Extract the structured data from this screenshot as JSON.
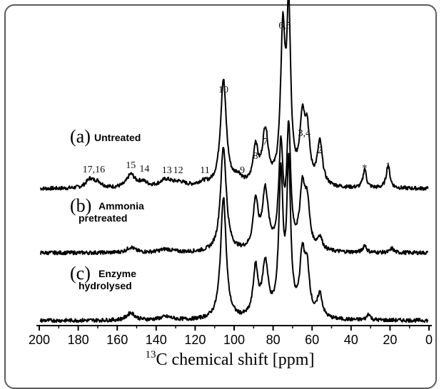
{
  "chart_data": {
    "type": "line",
    "title": "",
    "xlabel_sup": "13",
    "xlabel": "C chemical shift [ppm]",
    "xlim": [
      200,
      0
    ],
    "x_reversed": true,
    "x_ticks": [
      200,
      180,
      160,
      140,
      120,
      100,
      80,
      60,
      40,
      20,
      0
    ],
    "grid": false,
    "series": [
      {
        "letter": "(a)",
        "desc_lines": [
          "Untreated"
        ],
        "baseline": 0,
        "peaks": [
          {
            "x": 174,
            "h": 0.08,
            "w": 2.5
          },
          {
            "x": 170,
            "h": 0.05,
            "w": 2.5
          },
          {
            "x": 153,
            "h": 0.12,
            "w": 2.5
          },
          {
            "x": 147,
            "h": 0.05,
            "w": 3
          },
          {
            "x": 135,
            "h": 0.07,
            "w": 4
          },
          {
            "x": 128,
            "h": 0.04,
            "w": 4
          },
          {
            "x": 116,
            "h": 0.04,
            "w": 4
          },
          {
            "x": 105.5,
            "h": 1.0,
            "w": 1.8
          },
          {
            "x": 98,
            "h": 0.08,
            "w": 2.5
          },
          {
            "x": 89,
            "h": 0.35,
            "w": 1.5
          },
          {
            "x": 84,
            "h": 0.5,
            "w": 1.8
          },
          {
            "x": 75,
            "h": 1.38,
            "w": 1.4
          },
          {
            "x": 72,
            "h": 1.55,
            "w": 1.2
          },
          {
            "x": 65,
            "h": 0.58,
            "w": 1.6
          },
          {
            "x": 62.5,
            "h": 0.45,
            "w": 1.5
          },
          {
            "x": 56,
            "h": 0.4,
            "w": 1.6
          },
          {
            "x": 33,
            "h": 0.18,
            "w": 1.0
          },
          {
            "x": 21,
            "h": 0.22,
            "w": 1.1
          }
        ]
      },
      {
        "letter": "(b)",
        "desc_lines": [
          "Ammonia",
          "pretreated"
        ],
        "baseline": 0,
        "peaks": [
          {
            "x": 153,
            "h": 0.05,
            "w": 2.5
          },
          {
            "x": 135,
            "h": 0.03,
            "w": 4
          },
          {
            "x": 105.5,
            "h": 0.98,
            "w": 1.8
          },
          {
            "x": 89,
            "h": 0.45,
            "w": 1.5
          },
          {
            "x": 84,
            "h": 0.55,
            "w": 1.8
          },
          {
            "x": 76,
            "h": 0.95,
            "w": 1.3
          },
          {
            "x": 72,
            "h": 1.1,
            "w": 1.2
          },
          {
            "x": 65,
            "h": 0.55,
            "w": 1.6
          },
          {
            "x": 62.5,
            "h": 0.4,
            "w": 1.5
          },
          {
            "x": 56,
            "h": 0.12,
            "w": 1.5
          },
          {
            "x": 33,
            "h": 0.07,
            "w": 1.0
          },
          {
            "x": 19,
            "h": 0.04,
            "w": 1.0
          }
        ]
      },
      {
        "letter": "(c)",
        "desc_lines": [
          "Enzyme",
          "hydrolysed"
        ],
        "baseline": 0,
        "peaks": [
          {
            "x": 153,
            "h": 0.07,
            "w": 2.5
          },
          {
            "x": 135,
            "h": 0.03,
            "w": 4
          },
          {
            "x": 105.5,
            "h": 1.15,
            "w": 1.7
          },
          {
            "x": 89,
            "h": 0.45,
            "w": 1.5
          },
          {
            "x": 84,
            "h": 0.5,
            "w": 1.8
          },
          {
            "x": 76,
            "h": 1.3,
            "w": 1.3
          },
          {
            "x": 72,
            "h": 1.38,
            "w": 1.2
          },
          {
            "x": 65,
            "h": 0.55,
            "w": 1.6
          },
          {
            "x": 62.5,
            "h": 0.4,
            "w": 1.5
          },
          {
            "x": 56,
            "h": 0.22,
            "w": 1.5
          },
          {
            "x": 31,
            "h": 0.06,
            "w": 1.0
          }
        ]
      }
    ],
    "annotations": [
      {
        "text": "17,16",
        "x": 172
      },
      {
        "text": "15",
        "x": 153
      },
      {
        "text": "14",
        "x": 146
      },
      {
        "text": "13",
        "x": 136
      },
      {
        "text": "12",
        "x": 128
      },
      {
        "text": "11",
        "x": 115
      },
      {
        "text": "10",
        "x": 105.5
      },
      {
        "text": "9",
        "x": 98
      },
      {
        "text": "8",
        "x": 89
      },
      {
        "text": "7",
        "x": 84
      },
      {
        "text": "6,5",
        "x": 74
      },
      {
        "text": "3,4",
        "x": 64
      },
      {
        "text": "2",
        "x": 56
      },
      {
        "text": "*",
        "x": 33
      },
      {
        "text": "1",
        "x": 21
      }
    ]
  }
}
